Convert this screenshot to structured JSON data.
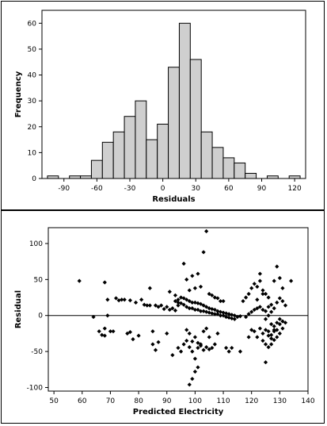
{
  "chart_data": [
    {
      "type": "bar",
      "subtype": "histogram",
      "xlabel": "Residuals",
      "ylabel": "Frequency",
      "bin_width": 10,
      "bins_start": [
        -105,
        -95,
        -85,
        -75,
        -65,
        -55,
        -45,
        -35,
        -25,
        -15,
        -5,
        5,
        15,
        25,
        35,
        45,
        55,
        65,
        75,
        85,
        95,
        105,
        115
      ],
      "values": [
        1,
        0,
        1,
        1,
        7,
        14,
        18,
        24,
        30,
        15,
        21,
        43,
        60,
        46,
        18,
        12,
        8,
        6,
        2,
        0,
        1,
        0,
        1
      ],
      "xlim": [
        -110,
        130
      ],
      "ylim": [
        0,
        65
      ],
      "xticks": [
        -90,
        -60,
        -30,
        0,
        30,
        60,
        90,
        120
      ],
      "yticks": [
        0,
        10,
        20,
        30,
        40,
        50,
        60
      ],
      "bar_color": "#cfcfcf",
      "edge_color": "#000000",
      "grid": false
    },
    {
      "type": "scatter",
      "xlabel": "Predicted Electricity",
      "ylabel": "Residual",
      "xlim": [
        48,
        140
      ],
      "ylim": [
        -105,
        122
      ],
      "xticks": [
        50,
        60,
        70,
        80,
        90,
        100,
        110,
        120,
        130,
        140
      ],
      "yticks": [
        -100,
        -50,
        0,
        50,
        100
      ],
      "reference_line_y": 0,
      "marker": "diamond",
      "marker_color": "#000000",
      "grid": false,
      "points": [
        [
          59,
          48
        ],
        [
          64,
          -2
        ],
        [
          66,
          -22
        ],
        [
          67,
          -27
        ],
        [
          68,
          -28
        ],
        [
          68,
          46
        ],
        [
          68,
          -18
        ],
        [
          69,
          0
        ],
        [
          69,
          22
        ],
        [
          70,
          -22
        ],
        [
          71,
          -22
        ],
        [
          72,
          24
        ],
        [
          73,
          21
        ],
        [
          74,
          22
        ],
        [
          75,
          22
        ],
        [
          76,
          -25
        ],
        [
          77,
          21
        ],
        [
          77,
          -23
        ],
        [
          78,
          -33
        ],
        [
          79,
          18
        ],
        [
          80,
          -28
        ],
        [
          81,
          22
        ],
        [
          82,
          15
        ],
        [
          83,
          14
        ],
        [
          84,
          14
        ],
        [
          85,
          -22
        ],
        [
          86,
          14
        ],
        [
          87,
          12
        ],
        [
          88,
          14
        ],
        [
          89,
          9
        ],
        [
          90,
          12
        ],
        [
          91,
          8
        ],
        [
          92,
          10
        ],
        [
          93,
          7
        ],
        [
          84,
          38
        ],
        [
          87,
          -37
        ],
        [
          85,
          -40
        ],
        [
          86,
          -48
        ],
        [
          90,
          -25
        ],
        [
          91,
          33
        ],
        [
          93,
          28
        ],
        [
          94,
          18
        ],
        [
          94,
          22
        ],
        [
          95,
          17
        ],
        [
          96,
          15
        ],
        [
          93,
          20
        ],
        [
          94,
          14
        ],
        [
          95,
          25
        ],
        [
          96,
          24
        ],
        [
          97,
          22
        ],
        [
          98,
          20
        ],
        [
          99,
          18
        ],
        [
          100,
          18
        ],
        [
          101,
          17
        ],
        [
          102,
          16
        ],
        [
          103,
          14
        ],
        [
          104,
          12
        ],
        [
          105,
          10
        ],
        [
          106,
          9
        ],
        [
          107,
          8
        ],
        [
          108,
          6
        ],
        [
          109,
          5
        ],
        [
          110,
          4
        ],
        [
          111,
          3
        ],
        [
          112,
          2
        ],
        [
          113,
          1
        ],
        [
          114,
          0
        ],
        [
          97,
          12
        ],
        [
          98,
          10
        ],
        [
          99,
          10
        ],
        [
          100,
          8
        ],
        [
          101,
          8
        ],
        [
          102,
          6
        ],
        [
          103,
          6
        ],
        [
          104,
          5
        ],
        [
          105,
          4
        ],
        [
          106,
          3
        ],
        [
          107,
          2
        ],
        [
          108,
          2
        ],
        [
          109,
          0
        ],
        [
          110,
          0
        ],
        [
          111,
          -2
        ],
        [
          112,
          -3
        ],
        [
          113,
          -4
        ],
        [
          114,
          -5
        ],
        [
          115,
          -2
        ],
        [
          116,
          -1
        ],
        [
          92,
          -55
        ],
        [
          94,
          -45
        ],
        [
          95,
          -50
        ],
        [
          96,
          -40
        ],
        [
          97,
          -35
        ],
        [
          98,
          -44
        ],
        [
          99,
          -50
        ],
        [
          100,
          -60
        ],
        [
          101,
          -45
        ],
        [
          102,
          -42
        ],
        [
          103,
          -48
        ],
        [
          104,
          -44
        ],
        [
          105,
          -47
        ],
        [
          106,
          -45
        ],
        [
          107,
          -40
        ],
        [
          98,
          -96
        ],
        [
          99,
          -88
        ],
        [
          100,
          -78
        ],
        [
          101,
          -72
        ],
        [
          99,
          -36
        ],
        [
          100,
          -30
        ],
        [
          101,
          -38
        ],
        [
          102,
          -40
        ],
        [
          97,
          -20
        ],
        [
          98,
          -25
        ],
        [
          103,
          -22
        ],
        [
          104,
          -18
        ],
        [
          105,
          -30
        ],
        [
          108,
          -25
        ],
        [
          111,
          -45
        ],
        [
          112,
          -50
        ],
        [
          113,
          -45
        ],
        [
          116,
          -50
        ],
        [
          96,
          72
        ],
        [
          97,
          50
        ],
        [
          99,
          55
        ],
        [
          101,
          58
        ],
        [
          103,
          88
        ],
        [
          104,
          117
        ],
        [
          102,
          40
        ],
        [
          100,
          38
        ],
        [
          98,
          35
        ],
        [
          105,
          30
        ],
        [
          106,
          28
        ],
        [
          107,
          25
        ],
        [
          108,
          24
        ],
        [
          109,
          20
        ],
        [
          110,
          20
        ],
        [
          117,
          20
        ],
        [
          118,
          25
        ],
        [
          119,
          30
        ],
        [
          120,
          38
        ],
        [
          121,
          44
        ],
        [
          122,
          40
        ],
        [
          123,
          48
        ],
        [
          124,
          35
        ],
        [
          125,
          30
        ],
        [
          126,
          25
        ],
        [
          119,
          -30
        ],
        [
          120,
          -20
        ],
        [
          121,
          -22
        ],
        [
          122,
          -30
        ],
        [
          123,
          -18
        ],
        [
          124,
          -25
        ],
        [
          125,
          -20
        ],
        [
          126,
          -28
        ],
        [
          127,
          -32
        ],
        [
          128,
          -22
        ],
        [
          129,
          -30
        ],
        [
          130,
          -12
        ],
        [
          131,
          -8
        ],
        [
          125,
          -65
        ],
        [
          126,
          -44
        ],
        [
          127,
          -40
        ],
        [
          128,
          -20
        ],
        [
          129,
          -10
        ],
        [
          130,
          -5
        ],
        [
          125,
          -5
        ],
        [
          126,
          0
        ],
        [
          127,
          5
        ],
        [
          128,
          10
        ],
        [
          129,
          18
        ],
        [
          130,
          24
        ],
        [
          131,
          20
        ],
        [
          132,
          14
        ],
        [
          118,
          -2
        ],
        [
          119,
          2
        ],
        [
          120,
          5
        ],
        [
          121,
          8
        ],
        [
          122,
          10
        ],
        [
          123,
          12
        ],
        [
          124,
          8
        ],
        [
          125,
          6
        ],
        [
          126,
          12
        ],
        [
          127,
          15
        ],
        [
          128,
          48
        ],
        [
          129,
          68
        ],
        [
          130,
          52
        ],
        [
          131,
          38
        ],
        [
          134,
          48
        ],
        [
          122,
          22
        ],
        [
          123,
          58
        ],
        [
          124,
          30
        ],
        [
          127,
          -12
        ],
        [
          128,
          -15
        ],
        [
          129,
          -20
        ],
        [
          130,
          -25
        ],
        [
          131,
          -18
        ],
        [
          132,
          -10
        ],
        [
          124,
          -35
        ],
        [
          125,
          -40
        ],
        [
          126,
          -22
        ],
        [
          127,
          -27
        ],
        [
          128,
          -34
        ]
      ]
    }
  ]
}
